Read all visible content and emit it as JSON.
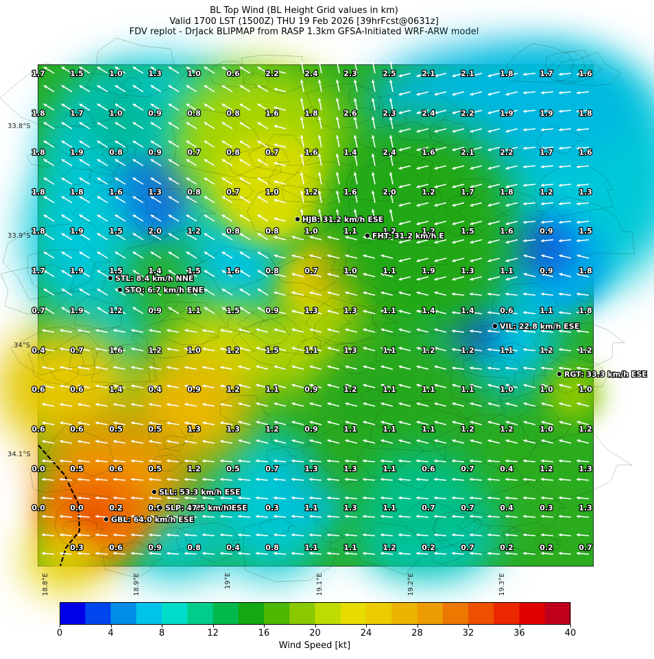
{
  "title": {
    "line1": "BL Top Wind (BL Height Grid values in km)",
    "line2": "Valid 1700 LST (1500Z) THU 19 Feb 2026 [39hrFcst@0631z]",
    "line3": "FDV replot - DrJack BLIPMAP from RASP 1.3km GFSA-Initiated WRF-ARW model"
  },
  "lat_labels": [
    "33.8°S",
    "33.9°S",
    "34°S",
    "34.1°S"
  ],
  "lon_labels": [
    "18.8°E",
    "18.9°E",
    "19°E",
    "19.1°E",
    "19.2°E",
    "19.3°E"
  ],
  "grid_values": [
    [
      "1.7",
      "1.5",
      "1.0",
      "1.3",
      "1.0",
      "0.6",
      "2.2",
      "2.4",
      "2.3",
      "2.5",
      "2.1",
      "2.1",
      "1.8",
      "1.7",
      "1.6"
    ],
    [
      "1.8",
      "1.7",
      "1.0",
      "0.9",
      "0.8",
      "0.8",
      "1.6",
      "1.8",
      "2.6",
      "2.3",
      "2.4",
      "2.2",
      "1.9",
      "1.9",
      "1.8"
    ],
    [
      "1.8",
      "1.9",
      "0.8",
      "0.9",
      "0.7",
      "0.8",
      "0.7",
      "1.6",
      "1.4",
      "2.4",
      "1.6",
      "2.1",
      "2.2",
      "1.7",
      "1.6"
    ],
    [
      "1.8",
      "1.8",
      "1.6",
      "1.3",
      "0.8",
      "0.7",
      "1.0",
      "1.2",
      "1.6",
      "2.0",
      "1.2",
      "1.7",
      "1.8",
      "1.2",
      "1.3"
    ],
    [
      "1.8",
      "1.9",
      "1.5",
      "2.0",
      "1.2",
      "0.8",
      "0.8",
      "1.0",
      "1.1",
      "1.2",
      "1.2",
      "1.5",
      "1.6",
      "0.9",
      "1.5"
    ],
    [
      "1.7",
      "1.9",
      "1.5",
      "1.4",
      "1.5",
      "1.6",
      "0.8",
      "0.7",
      "1.0",
      "1.1",
      "1.9",
      "1.3",
      "1.1",
      "0.9",
      "1.8"
    ],
    [
      "0.7",
      "1.9",
      "1.2",
      "0.9",
      "1.1",
      "1.5",
      "0.9",
      "1.3",
      "1.3",
      "1.1",
      "1.4",
      "1.4",
      "0.6",
      "1.1",
      "1.8"
    ],
    [
      "0.4",
      "0.7",
      "1.6",
      "1.2",
      "1.0",
      "1.2",
      "1.5",
      "1.1",
      "1.3",
      "1.1",
      "1.2",
      "1.2",
      "1.1",
      "1.2",
      "1.2"
    ],
    [
      "0.6",
      "0.6",
      "1.4",
      "0.4",
      "0.9",
      "1.2",
      "1.1",
      "0.9",
      "1.2",
      "1.1",
      "1.1",
      "1.1",
      "1.0",
      "1.0",
      "1.0"
    ],
    [
      "0.6",
      "0.6",
      "0.5",
      "0.5",
      "1.3",
      "1.3",
      "1.2",
      "0.9",
      "1.1",
      "1.1",
      "1.1",
      "1.2",
      "1.2",
      "1.0",
      "1.2"
    ],
    [
      "0.0",
      "0.5",
      "0.6",
      "0.5",
      "1.2",
      "0.5",
      "0.7",
      "1.3",
      "1.3",
      "1.1",
      "0.6",
      "0.7",
      "0.4",
      "1.2",
      "1.3"
    ],
    [
      "0.0",
      "0.0",
      "0.2",
      "0.9",
      "0.8",
      "0.4",
      "0.3",
      "1.1",
      "1.3",
      "1.1",
      "0.7",
      "0.7",
      "0.4",
      "0.3",
      "1.3"
    ],
    [
      "",
      "0.3",
      "0.6",
      "0.9",
      "0.8",
      "0.4",
      "0.8",
      "1.1",
      "1.1",
      "1.2",
      "0.2",
      "0.7",
      "0.2",
      "0.2",
      "0.7"
    ]
  ],
  "stations": [
    {
      "name": "HJB: 31.2 km/h ESE"
    },
    {
      "name": "FHT: 31.2 km/h E"
    },
    {
      "name": "STL: 8.4 km/h NNE"
    },
    {
      "name": "STO: 6.7 km/h ENE"
    },
    {
      "name": "VIL: 22.8 km/h ESE"
    },
    {
      "name": "RGT: 33.3 km/h ESE"
    },
    {
      "name": "SLL: 53.3 km/h ESE"
    },
    {
      "name": "SLP: 47.5 km/h ESE"
    },
    {
      "name": "GBL: 64.0 km/h ESE"
    }
  ],
  "colorbar": {
    "label": "Wind Speed [kt]",
    "ticks": [
      "0",
      "4",
      "8",
      "12",
      "16",
      "20",
      "24",
      "28",
      "32",
      "36",
      "40"
    ],
    "range": [
      0,
      40
    ],
    "colors": [
      "#0000e8",
      "#0046ee",
      "#008de8",
      "#00c3ea",
      "#00dcca",
      "#00cc8c",
      "#00b84c",
      "#14a814",
      "#4cb800",
      "#8ac800",
      "#bedc00",
      "#e6dc00",
      "#eccc00",
      "#ecb400",
      "#ec9c00",
      "#ec7800",
      "#ec5000",
      "#ec2800",
      "#e00000",
      "#c0001c"
    ]
  }
}
